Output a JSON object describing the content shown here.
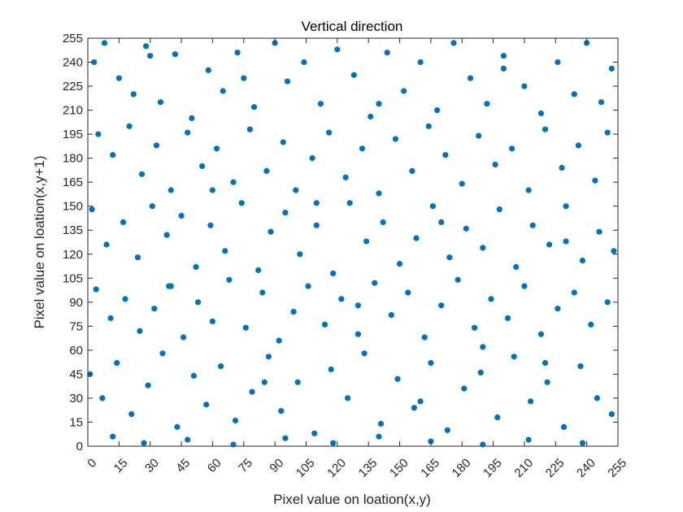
{
  "chart_data": {
    "type": "scatter",
    "title": "Vertical direction",
    "xlabel": "Pixel value on loation(x,y)",
    "ylabel": "Pixel value on loation(x,y+1)",
    "xlim": [
      0,
      255
    ],
    "ylim": [
      0,
      255
    ],
    "xticks": [
      0,
      15,
      30,
      45,
      60,
      75,
      90,
      105,
      120,
      135,
      150,
      165,
      180,
      195,
      210,
      225,
      240,
      255
    ],
    "yticks": [
      0,
      15,
      30,
      45,
      60,
      75,
      90,
      105,
      120,
      135,
      150,
      165,
      180,
      195,
      210,
      225,
      240,
      255
    ],
    "grid": false,
    "marker_color": "#0072BD",
    "series": [
      {
        "points": [
          [
            3,
            240
          ],
          [
            8,
            252
          ],
          [
            15,
            230
          ],
          [
            22,
            220
          ],
          [
            28,
            250
          ],
          [
            35,
            215
          ],
          [
            42,
            245
          ],
          [
            50,
            205
          ],
          [
            58,
            235
          ],
          [
            65,
            222
          ],
          [
            72,
            246
          ],
          [
            80,
            212
          ],
          [
            90,
            252
          ],
          [
            96,
            228
          ],
          [
            104,
            240
          ],
          [
            112,
            214
          ],
          [
            120,
            248
          ],
          [
            128,
            232
          ],
          [
            136,
            206
          ],
          [
            144,
            246
          ],
          [
            152,
            222
          ],
          [
            160,
            240
          ],
          [
            168,
            210
          ],
          [
            176,
            252
          ],
          [
            184,
            230
          ],
          [
            192,
            214
          ],
          [
            200,
            244
          ],
          [
            210,
            225
          ],
          [
            218,
            208
          ],
          [
            226,
            240
          ],
          [
            234,
            220
          ],
          [
            240,
            252
          ],
          [
            247,
            215
          ],
          [
            252,
            236
          ],
          [
            5,
            195
          ],
          [
            12,
            182
          ],
          [
            20,
            200
          ],
          [
            26,
            170
          ],
          [
            33,
            188
          ],
          [
            40,
            160
          ],
          [
            48,
            196
          ],
          [
            55,
            175
          ],
          [
            62,
            186
          ],
          [
            70,
            165
          ],
          [
            78,
            198
          ],
          [
            86,
            172
          ],
          [
            94,
            190
          ],
          [
            100,
            160
          ],
          [
            108,
            180
          ],
          [
            116,
            196
          ],
          [
            124,
            168
          ],
          [
            132,
            186
          ],
          [
            140,
            158
          ],
          [
            148,
            192
          ],
          [
            156,
            172
          ],
          [
            164,
            200
          ],
          [
            172,
            182
          ],
          [
            180,
            164
          ],
          [
            188,
            194
          ],
          [
            196,
            176
          ],
          [
            204,
            186
          ],
          [
            212,
            160
          ],
          [
            220,
            198
          ],
          [
            228,
            174
          ],
          [
            236,
            188
          ],
          [
            244,
            166
          ],
          [
            250,
            196
          ],
          [
            2,
            148
          ],
          [
            9,
            126
          ],
          [
            17,
            140
          ],
          [
            24,
            118
          ],
          [
            31,
            150
          ],
          [
            38,
            132
          ],
          [
            45,
            144
          ],
          [
            52,
            112
          ],
          [
            59,
            138
          ],
          [
            66,
            122
          ],
          [
            74,
            152
          ],
          [
            82,
            110
          ],
          [
            88,
            134
          ],
          [
            95,
            146
          ],
          [
            102,
            120
          ],
          [
            110,
            138
          ],
          [
            118,
            108
          ],
          [
            126,
            152
          ],
          [
            134,
            128
          ],
          [
            142,
            140
          ],
          [
            150,
            114
          ],
          [
            158,
            130
          ],
          [
            166,
            150
          ],
          [
            174,
            118
          ],
          [
            182,
            136
          ],
          [
            190,
            124
          ],
          [
            198,
            148
          ],
          [
            206,
            112
          ],
          [
            214,
            138
          ],
          [
            222,
            126
          ],
          [
            230,
            150
          ],
          [
            238,
            116
          ],
          [
            246,
            134
          ],
          [
            253,
            122
          ],
          [
            4,
            98
          ],
          [
            11,
            80
          ],
          [
            18,
            92
          ],
          [
            25,
            72
          ],
          [
            32,
            86
          ],
          [
            39,
            100
          ],
          [
            46,
            68
          ],
          [
            53,
            90
          ],
          [
            60,
            78
          ],
          [
            68,
            104
          ],
          [
            76,
            74
          ],
          [
            84,
            96
          ],
          [
            92,
            66
          ],
          [
            99,
            84
          ],
          [
            106,
            100
          ],
          [
            114,
            76
          ],
          [
            122,
            92
          ],
          [
            130,
            70
          ],
          [
            138,
            102
          ],
          [
            146,
            82
          ],
          [
            154,
            96
          ],
          [
            162,
            68
          ],
          [
            170,
            88
          ],
          [
            178,
            104
          ],
          [
            186,
            74
          ],
          [
            194,
            92
          ],
          [
            202,
            80
          ],
          [
            210,
            100
          ],
          [
            218,
            70
          ],
          [
            226,
            86
          ],
          [
            234,
            96
          ],
          [
            242,
            76
          ],
          [
            250,
            90
          ],
          [
            1,
            45
          ],
          [
            7,
            30
          ],
          [
            14,
            52
          ],
          [
            21,
            20
          ],
          [
            29,
            38
          ],
          [
            36,
            58
          ],
          [
            43,
            12
          ],
          [
            51,
            44
          ],
          [
            57,
            26
          ],
          [
            64,
            50
          ],
          [
            71,
            16
          ],
          [
            79,
            34
          ],
          [
            87,
            56
          ],
          [
            93,
            22
          ],
          [
            101,
            40
          ],
          [
            109,
            8
          ],
          [
            117,
            48
          ],
          [
            125,
            30
          ],
          [
            133,
            58
          ],
          [
            141,
            14
          ],
          [
            149,
            42
          ],
          [
            157,
            24
          ],
          [
            165,
            52
          ],
          [
            173,
            10
          ],
          [
            181,
            36
          ],
          [
            189,
            46
          ],
          [
            197,
            18
          ],
          [
            205,
            56
          ],
          [
            213,
            28
          ],
          [
            221,
            40
          ],
          [
            229,
            12
          ],
          [
            237,
            50
          ],
          [
            245,
            30
          ],
          [
            252,
            20
          ],
          [
            12,
            6
          ],
          [
            27,
            2
          ],
          [
            48,
            4
          ],
          [
            70,
            1
          ],
          [
            95,
            5
          ],
          [
            118,
            2
          ],
          [
            140,
            6
          ],
          [
            165,
            3
          ],
          [
            190,
            1
          ],
          [
            212,
            4
          ],
          [
            238,
            2
          ],
          [
            30,
            244
          ],
          [
            75,
            230
          ],
          [
            140,
            214
          ],
          [
            200,
            236
          ],
          [
            60,
            160
          ],
          [
            110,
            152
          ],
          [
            170,
            140
          ],
          [
            230,
            128
          ],
          [
            40,
            100
          ],
          [
            130,
            88
          ],
          [
            190,
            62
          ],
          [
            85,
            40
          ],
          [
            160,
            28
          ],
          [
            220,
            52
          ]
        ]
      }
    ]
  }
}
